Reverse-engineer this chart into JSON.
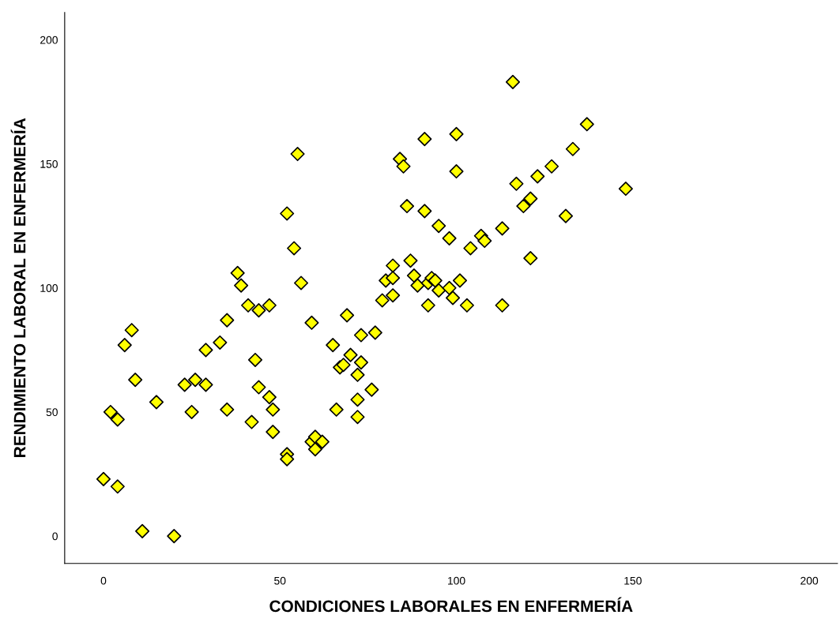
{
  "chart_data": {
    "type": "scatter",
    "xlabel": "CONDICIONES LABORALES EN ENFERMERÍA",
    "ylabel": "RENDIMIENTO LABORAL EN ENFERMERÍA",
    "xlim": [
      -11,
      208
    ],
    "ylim": [
      -11,
      211
    ],
    "xticks": [
      0,
      50,
      100,
      150,
      200
    ],
    "yticks": [
      0,
      50,
      100,
      150,
      200
    ],
    "grid": false,
    "legend": false,
    "marker": "diamond",
    "series": [
      {
        "color": "#ffff00",
        "x": [
          0,
          2,
          4,
          4,
          6,
          8,
          9,
          11,
          15,
          20,
          23,
          25,
          26,
          29,
          29,
          33,
          35,
          35,
          38,
          39,
          41,
          42,
          43,
          44,
          44,
          47,
          47,
          48,
          48,
          52,
          52,
          52,
          54,
          55,
          56,
          59,
          59,
          60,
          60,
          62,
          65,
          66,
          67,
          68,
          69,
          70,
          72,
          72,
          72,
          73,
          73,
          76,
          77,
          79,
          80,
          82,
          82,
          82,
          84,
          85,
          86,
          87,
          88,
          89,
          91,
          91,
          92,
          92,
          93,
          94,
          95,
          95,
          98,
          98,
          99,
          100,
          100,
          101,
          103,
          104,
          107,
          108,
          113,
          113,
          116,
          117,
          119,
          121,
          121,
          123,
          127,
          131,
          133,
          137,
          148
        ],
        "values": [
          23,
          50,
          47,
          20,
          77,
          83,
          63,
          2,
          54,
          0,
          61,
          50,
          63,
          75,
          61,
          78,
          87,
          51,
          106,
          101,
          93,
          46,
          71,
          91,
          60,
          93,
          56,
          51,
          42,
          130,
          33,
          31,
          116,
          154,
          102,
          86,
          38,
          40,
          35,
          38,
          77,
          51,
          68,
          69,
          89,
          73,
          65,
          55,
          48,
          81,
          70,
          59,
          82,
          95,
          103,
          109,
          104,
          97,
          152,
          149,
          133,
          111,
          105,
          101,
          160,
          131,
          102,
          93,
          104,
          103,
          125,
          99,
          120,
          100,
          96,
          162,
          147,
          103,
          93,
          116,
          121,
          119,
          124,
          93,
          183,
          142,
          133,
          136,
          112,
          145,
          149,
          129,
          156,
          166,
          140
        ]
      }
    ]
  }
}
